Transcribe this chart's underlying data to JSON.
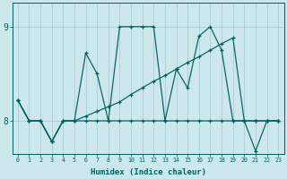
{
  "xlabel": "Humidex (Indice chaleur)",
  "bg_color": "#cce8ec",
  "grid_color": "#aacdd4",
  "line_color": "#006060",
  "xlim": [
    -0.5,
    23.5
  ],
  "ylim": [
    7.65,
    9.25
  ],
  "yticks": [
    8,
    9
  ],
  "xticks": [
    0,
    1,
    2,
    3,
    4,
    5,
    6,
    7,
    8,
    9,
    10,
    11,
    12,
    13,
    14,
    15,
    16,
    17,
    18,
    19,
    20,
    21,
    22,
    23
  ],
  "flat_line_x": [
    0,
    1,
    2,
    3,
    4,
    5,
    6,
    7,
    8,
    9,
    10,
    11,
    12,
    13,
    14,
    15,
    16,
    17,
    18,
    19,
    20,
    21,
    22,
    23
  ],
  "flat_line_y": [
    8.22,
    8.0,
    8.0,
    7.78,
    8.0,
    8.0,
    8.0,
    8.0,
    8.0,
    8.0,
    8.0,
    8.0,
    8.0,
    8.0,
    8.0,
    8.0,
    8.0,
    8.0,
    8.0,
    8.0,
    8.0,
    8.0,
    8.0,
    8.0
  ],
  "rising_line_x": [
    0,
    1,
    2,
    3,
    4,
    5,
    6,
    7,
    8,
    9,
    10,
    11,
    12,
    13,
    14,
    15,
    16,
    17,
    18,
    19,
    20,
    21,
    22,
    23
  ],
  "rising_line_y": [
    8.22,
    8.0,
    8.0,
    7.78,
    8.0,
    8.0,
    8.05,
    8.1,
    8.15,
    8.2,
    8.28,
    8.35,
    8.42,
    8.48,
    8.55,
    8.62,
    8.68,
    8.75,
    8.82,
    8.88,
    8.0,
    8.0,
    8.0,
    8.0
  ],
  "zigzag_line_x": [
    0,
    1,
    2,
    3,
    4,
    5,
    6,
    7,
    8,
    9,
    10,
    11,
    12,
    13,
    14,
    15,
    16,
    17,
    18,
    19,
    20,
    21,
    22,
    23
  ],
  "zigzag_line_y": [
    8.22,
    8.0,
    8.0,
    7.78,
    8.0,
    8.0,
    8.72,
    8.5,
    8.0,
    9.0,
    9.0,
    9.0,
    9.0,
    8.0,
    8.55,
    8.35,
    8.9,
    9.0,
    8.75,
    8.0,
    8.0,
    7.68,
    8.0,
    8.0
  ]
}
